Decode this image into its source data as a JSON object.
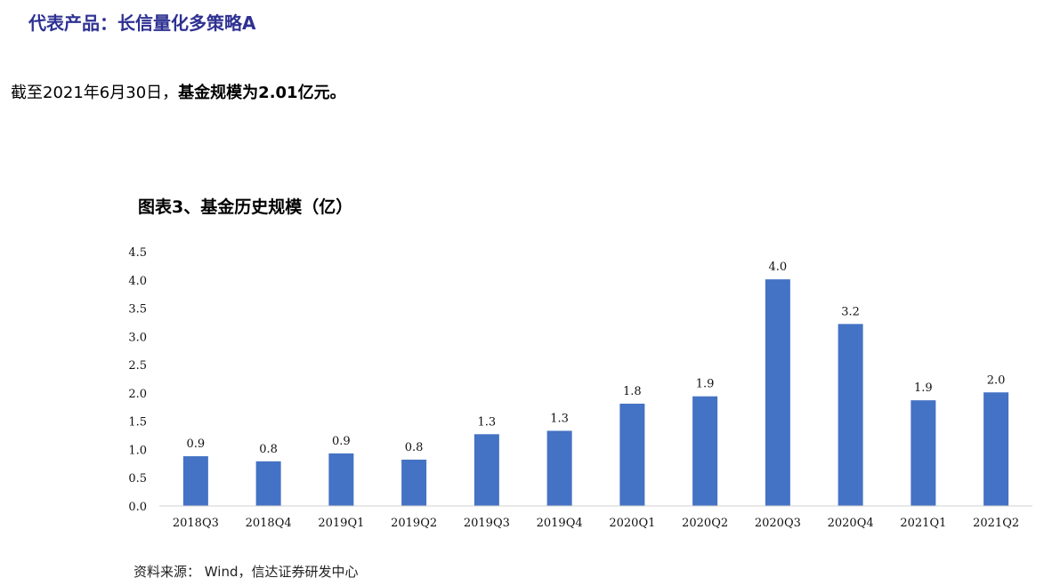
{
  "header": {
    "section_title": "代表产品：长信量化多策略A"
  },
  "summary": {
    "prefix": "截至2021年6月30日，",
    "highlight": "基金规模为2.01亿元。"
  },
  "chart_data": {
    "type": "bar",
    "title": "图表3、基金历史规模（亿）",
    "xlabel": "",
    "ylabel": "",
    "categories": [
      "2018Q3",
      "2018Q4",
      "2019Q1",
      "2019Q2",
      "2019Q3",
      "2019Q4",
      "2020Q1",
      "2020Q2",
      "2020Q3",
      "2020Q4",
      "2021Q1",
      "2021Q2"
    ],
    "values": [
      0.88,
      0.79,
      0.93,
      0.82,
      1.27,
      1.33,
      1.81,
      1.94,
      4.01,
      3.22,
      1.87,
      2.01
    ],
    "data_labels": [
      "0.9",
      "0.8",
      "0.9",
      "0.8",
      "1.3",
      "1.3",
      "1.8",
      "1.9",
      "4.0",
      "3.2",
      "1.9",
      "2.0"
    ],
    "yticks": [
      "0.0",
      "0.5",
      "1.0",
      "1.5",
      "2.0",
      "2.5",
      "3.0",
      "3.5",
      "4.0",
      "4.5"
    ],
    "ylim": [
      0,
      4.5
    ],
    "grid": false,
    "bar_color": "#4472c4"
  },
  "footer": {
    "source": "资料来源： Wind，信达证券研发中心"
  }
}
